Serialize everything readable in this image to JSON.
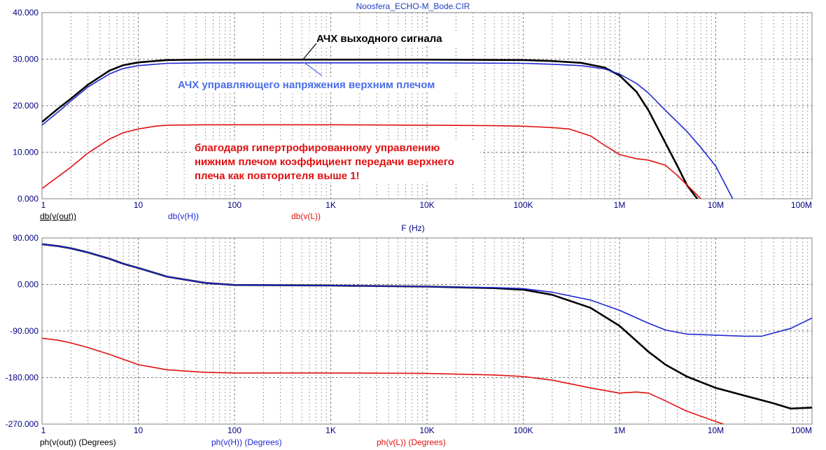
{
  "window_title": "Noosfera_ECHO-M_Bode.CIR",
  "colors": {
    "black": "#000000",
    "blue": "#1e28d0",
    "red": "#e01010",
    "axis_text": "#000080"
  },
  "chart_data": [
    {
      "type": "line",
      "title": "Noosfera_ECHO-M_Bode.CIR",
      "xlabel": "F (Hz)",
      "ylabel": "",
      "xscale": "log",
      "xlim": [
        1,
        100000000
      ],
      "ylim": [
        0,
        40
      ],
      "xtick_labels": [
        "1",
        "10",
        "100",
        "1K",
        "10K",
        "100K",
        "1M",
        "10M",
        "100M"
      ],
      "ytick_labels": [
        "0.000",
        "10.000",
        "20.000",
        "30.000",
        "40.000"
      ],
      "grid": true,
      "legend_labels": [
        "db(v(out))",
        "db(v(H))",
        "db(v(L))"
      ],
      "annotations": [
        {
          "text": "АЧХ выходного сигнала",
          "color": "#000000"
        },
        {
          "text": "АЧХ управляющего напряжения верхним плечом",
          "color": "#4a6ee8"
        },
        {
          "text": "благодаря гипертрофированному управлению",
          "color": "#e01010"
        },
        {
          "text": "нижним плечом коэффициент передачи верхнего",
          "color": "#e01010"
        },
        {
          "text": "плеча как повторителя выше 1!",
          "color": "#e01010"
        }
      ],
      "series": [
        {
          "color": "#000000",
          "x": [
            1,
            1.5,
            2,
            3,
            5,
            7,
            10,
            15,
            20,
            50,
            100,
            1000,
            10000,
            100000,
            200000,
            400000,
            700000,
            1000000,
            1500000,
            2000000,
            3000000,
            4000000,
            5000000,
            6000000,
            7000000
          ],
          "y": [
            16.5,
            19.5,
            21.5,
            24.5,
            27.5,
            28.7,
            29.3,
            29.6,
            29.8,
            29.9,
            29.9,
            29.9,
            29.9,
            29.8,
            29.6,
            29.2,
            28.2,
            26.5,
            23,
            19,
            12,
            7,
            3,
            0.8,
            -1
          ]
        },
        {
          "color": "#1e28d0",
          "x": [
            1,
            1.5,
            2,
            3,
            5,
            7,
            10,
            15,
            20,
            50,
            100,
            1000,
            10000,
            100000,
            200000,
            400000,
            700000,
            1000000,
            1500000,
            2000000,
            3000000,
            5000000,
            7000000,
            10000000,
            15000000
          ],
          "y": [
            15.8,
            18.8,
            21,
            24,
            26.8,
            28,
            28.6,
            28.9,
            29.1,
            29.2,
            29.2,
            29.2,
            29.2,
            29.1,
            28.9,
            28.6,
            27.9,
            26.8,
            24.8,
            22.7,
            19,
            14.5,
            11,
            7,
            0
          ]
        },
        {
          "color": "#e01010",
          "x": [
            1,
            2,
            3,
            5,
            7,
            10,
            15,
            20,
            50,
            100,
            1000,
            10000,
            50000,
            100000,
            200000,
            300000,
            500000,
            700000,
            1000000,
            1500000,
            2000000,
            3000000,
            4000000,
            5000000,
            7000000
          ],
          "y": [
            2.2,
            6.8,
            9.8,
            12.8,
            14.2,
            15,
            15.6,
            15.8,
            15.9,
            15.9,
            15.9,
            15.8,
            15.7,
            15.6,
            15.3,
            15,
            13.5,
            11.5,
            9.5,
            8.6,
            8.3,
            7.2,
            5,
            3,
            0
          ]
        }
      ]
    },
    {
      "type": "line",
      "title": "",
      "xlabel": "F (Hz)",
      "ylabel": "",
      "xscale": "log",
      "xlim": [
        1,
        100000000
      ],
      "ylim": [
        -270,
        90
      ],
      "xtick_labels": [
        "1",
        "10",
        "100",
        "1K",
        "10K",
        "100K",
        "1M",
        "10M",
        "100M"
      ],
      "ytick_labels": [
        "-270.000",
        "-180.000",
        "-90.000",
        "0.000",
        "90.000"
      ],
      "grid": true,
      "legend_labels": [
        "ph(v(out)) (Degrees)",
        "ph(v(H)) (Degrees)",
        "ph(v(L)) (Degrees)"
      ],
      "series": [
        {
          "color": "#000000",
          "x": [
            1,
            1.5,
            2,
            3,
            5,
            7,
            10,
            20,
            50,
            100,
            1000,
            10000,
            50000,
            100000,
            200000,
            500000,
            1000000,
            2000000,
            3000000,
            5000000,
            10000000,
            20000000,
            40000000,
            60000000,
            100000000
          ],
          "y": [
            78,
            74,
            70,
            62,
            50,
            40,
            32,
            15,
            3,
            -1,
            -2,
            -4,
            -7,
            -10,
            -20,
            -45,
            -80,
            -130,
            -155,
            -178,
            -200,
            -215,
            -230,
            -240,
            -238
          ]
        },
        {
          "color": "#1e28d0",
          "x": [
            1,
            1.5,
            2,
            3,
            5,
            7,
            10,
            20,
            50,
            100,
            1000,
            10000,
            50000,
            100000,
            200000,
            500000,
            1000000,
            2000000,
            3000000,
            5000000,
            10000000,
            20000000,
            30000000,
            60000000,
            100000000
          ],
          "y": [
            78,
            74,
            70,
            62,
            50,
            40,
            32,
            15,
            3,
            -1,
            -2,
            -4,
            -6,
            -8,
            -15,
            -30,
            -50,
            -75,
            -88,
            -96,
            -98,
            -100,
            -100,
            -85,
            -65
          ]
        },
        {
          "color": "#e01010",
          "x": [
            1,
            1.5,
            2,
            3,
            5,
            10,
            20,
            50,
            100,
            1000,
            10000,
            50000,
            100000,
            200000,
            500000,
            1000000,
            1500000,
            2000000,
            3000000,
            5000000,
            10000000,
            12000000
          ],
          "y": [
            -104,
            -108,
            -113,
            -122,
            -135,
            -155,
            -165,
            -170,
            -171,
            -171,
            -172,
            -175,
            -178,
            -185,
            -200,
            -210,
            -208,
            -210,
            -225,
            -245,
            -265,
            -270
          ]
        }
      ]
    }
  ]
}
